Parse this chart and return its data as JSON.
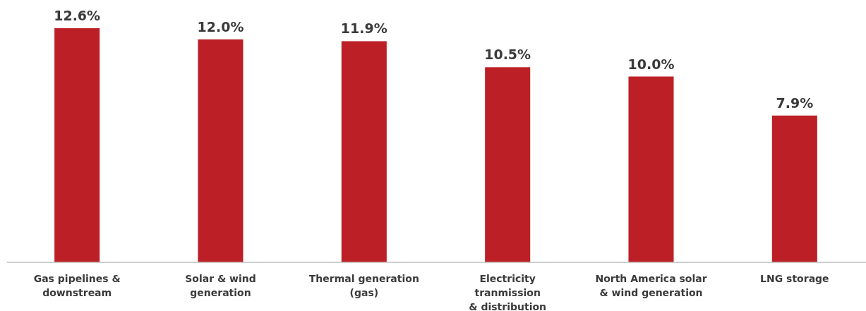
{
  "chart_data": {
    "type": "bar",
    "categories": [
      "Gas pipelines &\ndownstream",
      "Solar & wind\ngeneration",
      "Thermal generation\n(gas)",
      "Electricity\ntranmission\n& distribution",
      "North America solar\n& wind generation",
      "LNG storage"
    ],
    "values": [
      12.6,
      12.0,
      11.9,
      10.5,
      10.0,
      7.9
    ],
    "value_labels": [
      "12.6%",
      "12.0%",
      "11.9%",
      "10.5%",
      "10.0%",
      "7.9%"
    ],
    "color": "#bc2026"
  }
}
